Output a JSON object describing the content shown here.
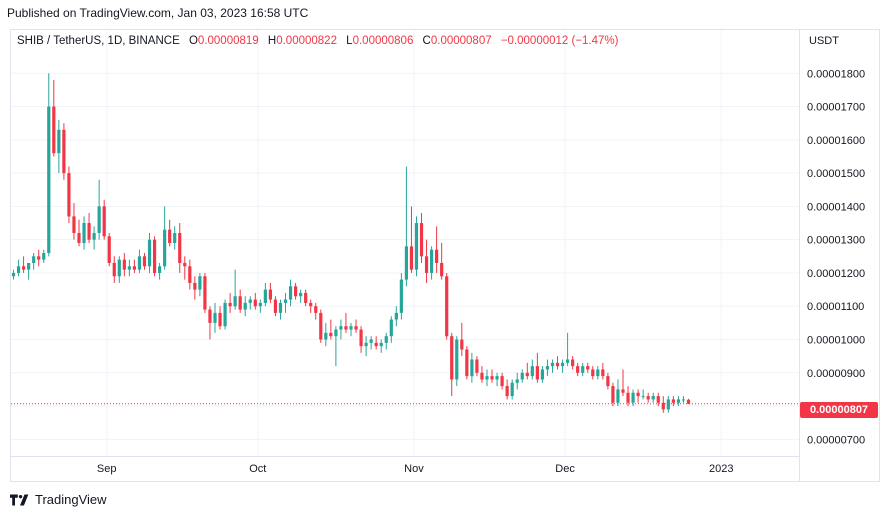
{
  "header": {
    "published": "Published on TradingView.com, Jan 03, 2023 16:58 UTC"
  },
  "legend": {
    "symbol": "SHIB / TetherUS, 1D, BINANCE",
    "open_label": "O",
    "open": "0.00000819",
    "high_label": "H",
    "high": "0.00000822",
    "low_label": "L",
    "low": "0.00000806",
    "close_label": "C",
    "close": "0.00000807",
    "change": "−0.00000012 (−1.47%)"
  },
  "axis": {
    "currency": "USDT",
    "last_price_label": "0.00000807"
  },
  "branding": {
    "name": "TradingView"
  },
  "colors": {
    "up": "#26a69a",
    "down": "#f23645",
    "grid": "#f0f3fa",
    "axis_text": "#131722"
  },
  "chart_data": {
    "type": "candlestick",
    "title": "SHIB / TetherUS, 1D, BINANCE",
    "ylabel": "USDT",
    "ylim": [
      6.5e-06,
      1.93e-05
    ],
    "y_ticks": [
      "0.00000700",
      "0.00000800",
      "0.00000900",
      "0.00001000",
      "0.00001100",
      "0.00001200",
      "0.00001300",
      "0.00001400",
      "0.00001500",
      "0.00001600",
      "0.00001700",
      "0.00001800"
    ],
    "x_ticks": [
      "Sep",
      "Oct",
      "Nov",
      "Dec",
      "2023"
    ],
    "grid": true,
    "last_price": 8.07e-06,
    "start_date": "2022-08-13",
    "candles": [
      [
        1.19e-05,
        1.21e-05,
        1.18e-05,
        1.2e-05
      ],
      [
        1.2e-05,
        1.24e-05,
        1.19e-05,
        1.22e-05
      ],
      [
        1.22e-05,
        1.25e-05,
        1.2e-05,
        1.21e-05
      ],
      [
        1.21e-05,
        1.23e-05,
        1.18e-05,
        1.23e-05
      ],
      [
        1.23e-05,
        1.26e-05,
        1.21e-05,
        1.25e-05
      ],
      [
        1.25e-05,
        1.27e-05,
        1.22e-05,
        1.24e-05
      ],
      [
        1.24e-05,
        1.27e-05,
        1.23e-05,
        1.26e-05
      ],
      [
        1.26e-05,
        1.8e-05,
        1.25e-05,
        1.7e-05
      ],
      [
        1.7e-05,
        1.78e-05,
        1.55e-05,
        1.56e-05
      ],
      [
        1.56e-05,
        1.66e-05,
        1.5e-05,
        1.63e-05
      ],
      [
        1.63e-05,
        1.65e-05,
        1.48e-05,
        1.5e-05
      ],
      [
        1.5e-05,
        1.52e-05,
        1.35e-05,
        1.37e-05
      ],
      [
        1.37e-05,
        1.41e-05,
        1.3e-05,
        1.32e-05
      ],
      [
        1.32e-05,
        1.36e-05,
        1.28e-05,
        1.29e-05
      ],
      [
        1.29e-05,
        1.37e-05,
        1.27e-05,
        1.35e-05
      ],
      [
        1.35e-05,
        1.38e-05,
        1.29e-05,
        1.3e-05
      ],
      [
        1.3e-05,
        1.34e-05,
        1.27e-05,
        1.32e-05
      ],
      [
        1.32e-05,
        1.48e-05,
        1.3e-05,
        1.4e-05
      ],
      [
        1.4e-05,
        1.42e-05,
        1.3e-05,
        1.31e-05
      ],
      [
        1.31e-05,
        1.32e-05,
        1.22e-05,
        1.23e-05
      ],
      [
        1.23e-05,
        1.25e-05,
        1.17e-05,
        1.19e-05
      ],
      [
        1.19e-05,
        1.25e-05,
        1.17e-05,
        1.24e-05
      ],
      [
        1.24e-05,
        1.26e-05,
        1.19e-05,
        1.21e-05
      ],
      [
        1.21e-05,
        1.24e-05,
        1.19e-05,
        1.22e-05
      ],
      [
        1.22e-05,
        1.24e-05,
        1.2e-05,
        1.21e-05
      ],
      [
        1.21e-05,
        1.27e-05,
        1.2e-05,
        1.25e-05
      ],
      [
        1.25e-05,
        1.26e-05,
        1.21e-05,
        1.22e-05
      ],
      [
        1.22e-05,
        1.32e-05,
        1.2e-05,
        1.3e-05
      ],
      [
        1.3e-05,
        1.31e-05,
        1.19e-05,
        1.2e-05
      ],
      [
        1.2e-05,
        1.23e-05,
        1.18e-05,
        1.22e-05
      ],
      [
        1.22e-05,
        1.4e-05,
        1.21e-05,
        1.33e-05
      ],
      [
        1.33e-05,
        1.36e-05,
        1.28e-05,
        1.29e-05
      ],
      [
        1.29e-05,
        1.34e-05,
        1.27e-05,
        1.32e-05
      ],
      [
        1.32e-05,
        1.35e-05,
        1.2e-05,
        1.23e-05
      ],
      [
        1.23e-05,
        1.25e-05,
        1.18e-05,
        1.22e-05
      ],
      [
        1.22e-05,
        1.24e-05,
        1.15e-05,
        1.17e-05
      ],
      [
        1.17e-05,
        1.19e-05,
        1.12e-05,
        1.15e-05
      ],
      [
        1.15e-05,
        1.2e-05,
        1.13e-05,
        1.19e-05
      ],
      [
        1.19e-05,
        1.2e-05,
        1.08e-05,
        1.09e-05
      ],
      [
        1.09e-05,
        1.1e-05,
        1e-05,
        1.05e-05
      ],
      [
        1.05e-05,
        1.11e-05,
        1.02e-05,
        1.08e-05
      ],
      [
        1.08e-05,
        1.1e-05,
        1.03e-05,
        1.04e-05
      ],
      [
        1.04e-05,
        1.12e-05,
        1.03e-05,
        1.11e-05
      ],
      [
        1.11e-05,
        1.14e-05,
        1.08e-05,
        1.1e-05
      ],
      [
        1.1e-05,
        1.21e-05,
        1.09e-05,
        1.13e-05
      ],
      [
        1.13e-05,
        1.15e-05,
        1.08e-05,
        1.09e-05
      ],
      [
        1.09e-05,
        1.13e-05,
        1.07e-05,
        1.11e-05
      ],
      [
        1.11e-05,
        1.13e-05,
        1.09e-05,
        1.12e-05
      ],
      [
        1.12e-05,
        1.14e-05,
        1.09e-05,
        1.1e-05
      ],
      [
        1.1e-05,
        1.12e-05,
        1.08e-05,
        1.11e-05
      ],
      [
        1.11e-05,
        1.17e-05,
        1.1e-05,
        1.15e-05
      ],
      [
        1.15e-05,
        1.17e-05,
        1.11e-05,
        1.12e-05
      ],
      [
        1.12e-05,
        1.13e-05,
        1.07e-05,
        1.08e-05
      ],
      [
        1.08e-05,
        1.12e-05,
        1.06e-05,
        1.11e-05
      ],
      [
        1.11e-05,
        1.14e-05,
        1.08e-05,
        1.12e-05
      ],
      [
        1.12e-05,
        1.18e-05,
        1.1e-05,
        1.16e-05
      ],
      [
        1.16e-05,
        1.17e-05,
        1.12e-05,
        1.13e-05
      ],
      [
        1.13e-05,
        1.15e-05,
        1.11e-05,
        1.14e-05
      ],
      [
        1.14e-05,
        1.15e-05,
        1.1e-05,
        1.11e-05
      ],
      [
        1.11e-05,
        1.12e-05,
        1.08e-05,
        1.1e-05
      ],
      [
        1.1e-05,
        1.11e-05,
        1.06e-05,
        1.08e-05
      ],
      [
        1.08e-05,
        1.09e-05,
        9.9e-06,
        1e-05
      ],
      [
        1e-05,
        1.05e-05,
        9.8e-06,
        1.02e-05
      ],
      [
        1.02e-05,
        1.06e-05,
        1e-05,
        1.01e-05
      ],
      [
        1.01e-05,
        1.04e-05,
        9.2e-06,
        1.03e-05
      ],
      [
        1.03e-05,
        1.06e-05,
        1e-05,
        1.04e-05
      ],
      [
        1.04e-05,
        1.08e-05,
        1.02e-05,
        1.03e-05
      ],
      [
        1.03e-05,
        1.05e-05,
        1.01e-05,
        1.04e-05
      ],
      [
        1.04e-05,
        1.06e-05,
        1.02e-05,
        1.03e-05
      ],
      [
        1.03e-05,
        1.04e-05,
        9.6e-06,
        9.8e-06
      ],
      [
        9.8e-06,
        1.01e-05,
        9.5e-06,
        9.9e-06
      ],
      [
        9.9e-06,
        1.01e-05,
        9.7e-06,
        1e-05
      ],
      [
        9.9e-06,
        1.01e-05,
        9.7e-06,
        9.8e-06
      ],
      [
        9.8e-06,
        1e-05,
        9.6e-06,
        9.9e-06
      ],
      [
        9.9e-06,
        1.02e-05,
        9.7e-06,
        1.01e-05
      ],
      [
        1.01e-05,
        1.07e-05,
        9.9e-06,
        1.06e-05
      ],
      [
        1.06e-05,
        1.1e-05,
        1.04e-05,
        1.08e-05
      ],
      [
        1.08e-05,
        1.2e-05,
        1.06e-05,
        1.18e-05
      ],
      [
        1.18e-05,
        1.52e-05,
        1.16e-05,
        1.28e-05
      ],
      [
        1.28e-05,
        1.4e-05,
        1.2e-05,
        1.21e-05
      ],
      [
        1.21e-05,
        1.37e-05,
        1.19e-05,
        1.35e-05
      ],
      [
        1.35e-05,
        1.38e-05,
        1.23e-05,
        1.25e-05
      ],
      [
        1.25e-05,
        1.3e-05,
        1.17e-05,
        1.2e-05
      ],
      [
        1.2e-05,
        1.28e-05,
        1.18e-05,
        1.27e-05
      ],
      [
        1.27e-05,
        1.34e-05,
        1.2e-05,
        1.23e-05
      ],
      [
        1.23e-05,
        1.29e-05,
        1.18e-05,
        1.19e-05
      ],
      [
        1.19e-05,
        1.2e-05,
        1e-05,
        1.01e-05
      ],
      [
        1.01e-05,
        1.02e-05,
        8.3e-06,
        8.8e-06
      ],
      [
        8.8e-06,
        1.01e-05,
        8.6e-06,
        1e-05
      ],
      [
        1e-05,
        1.05e-05,
        9.5e-06,
        9.7e-06
      ],
      [
        9.7e-06,
        9.8e-06,
        8.8e-06,
        8.9e-06
      ],
      [
        8.9e-06,
        9.6e-06,
        8.7e-06,
        9.4e-06
      ],
      [
        9.4e-06,
        9.5e-06,
        8.9e-06,
        9e-06
      ],
      [
        9e-06,
        9.2e-06,
        8.7e-06,
        8.8e-06
      ],
      [
        8.8e-06,
        9.1e-06,
        8.6e-06,
        8.9e-06
      ],
      [
        8.9e-06,
        9.1e-06,
        8.7e-06,
        8.8e-06
      ],
      [
        8.8e-06,
        9e-06,
        8.6e-06,
        8.9e-06
      ],
      [
        8.9e-06,
        9e-06,
        8.5e-06,
        8.6e-06
      ],
      [
        8.6e-06,
        8.8e-06,
        8.2e-06,
        8.3e-06
      ],
      [
        8.3e-06,
        8.8e-06,
        8.2e-06,
        8.7e-06
      ],
      [
        8.7e-06,
        9e-06,
        8.5e-06,
        8.8e-06
      ],
      [
        8.8e-06,
        9.1e-06,
        8.7e-06,
        9e-06
      ],
      [
        9e-06,
        9.3e-06,
        8.8e-06,
        8.9e-06
      ],
      [
        8.9e-06,
        9.4e-06,
        8.8e-06,
        9.2e-06
      ],
      [
        9.2e-06,
        9.6e-06,
        8.7e-06,
        8.8e-06
      ],
      [
        8.8e-06,
        9.2e-06,
        8.7e-06,
        9.1e-06
      ],
      [
        9.1e-06,
        9.4e-06,
        8.9e-06,
        9.2e-06
      ],
      [
        9.2e-06,
        9.4e-06,
        9e-06,
        9.3e-06
      ],
      [
        9.3e-06,
        9.5e-06,
        9.1e-06,
        9.2e-06
      ],
      [
        9.2e-06,
        9.4e-06,
        9e-06,
        9.3e-06
      ],
      [
        9.3e-06,
        1.02e-05,
        9.2e-06,
        9.4e-06
      ],
      [
        9.4e-06,
        9.5e-06,
        9.1e-06,
        9.2e-06
      ],
      [
        9.2e-06,
        9.3e-06,
        8.9e-06,
        9e-06
      ],
      [
        9e-06,
        9.3e-06,
        8.9e-06,
        9.2e-06
      ],
      [
        9.2e-06,
        9.3e-06,
        9e-06,
        9.1e-06
      ],
      [
        9.1e-06,
        9.2e-06,
        8.8e-06,
        8.9e-06
      ],
      [
        8.9e-06,
        9.2e-06,
        8.8e-06,
        9.1e-06
      ],
      [
        9.1e-06,
        9.3e-06,
        8.8e-06,
        8.9e-06
      ],
      [
        8.9e-06,
        9e-06,
        8.5e-06,
        8.6e-06
      ],
      [
        8.6e-06,
        8.7e-06,
        8e-06,
        8.1e-06
      ],
      [
        8.1e-06,
        8.8e-06,
        8e-06,
        8.5e-06
      ],
      [
        8.5e-06,
        9.1e-06,
        8.3e-06,
        8.4e-06
      ],
      [
        8.4e-06,
        8.6e-06,
        8e-06,
        8.1e-06
      ],
      [
        8.1e-06,
        8.5e-06,
        8e-06,
        8.4e-06
      ],
      [
        8.4e-06,
        8.5e-06,
        8.1e-06,
        8.3e-06
      ],
      [
        8.3e-06,
        8.5e-06,
        8.2e-06,
        8.3e-06
      ],
      [
        8.3e-06,
        8.4e-06,
        8.1e-06,
        8.2e-06
      ],
      [
        8.2e-06,
        8.4e-06,
        8.1e-06,
        8.3e-06
      ],
      [
        8.3e-06,
        8.4e-06,
        8e-06,
        8.1e-06
      ],
      [
        8.1e-06,
        8.3e-06,
        7.8e-06,
        7.9e-06
      ],
      [
        7.9e-06,
        8.3e-06,
        7.8e-06,
        8.2e-06
      ],
      [
        8.2e-06,
        8.3e-06,
        8e-06,
        8.1e-06
      ],
      [
        8.1e-06,
        8.3e-06,
        8e-06,
        8.2e-06
      ],
      [
        8.2e-06,
        8.3e-06,
        8.1e-06,
        8.2e-06
      ],
      [
        8.19e-06,
        8.22e-06,
        8.06e-06,
        8.07e-06
      ]
    ]
  }
}
